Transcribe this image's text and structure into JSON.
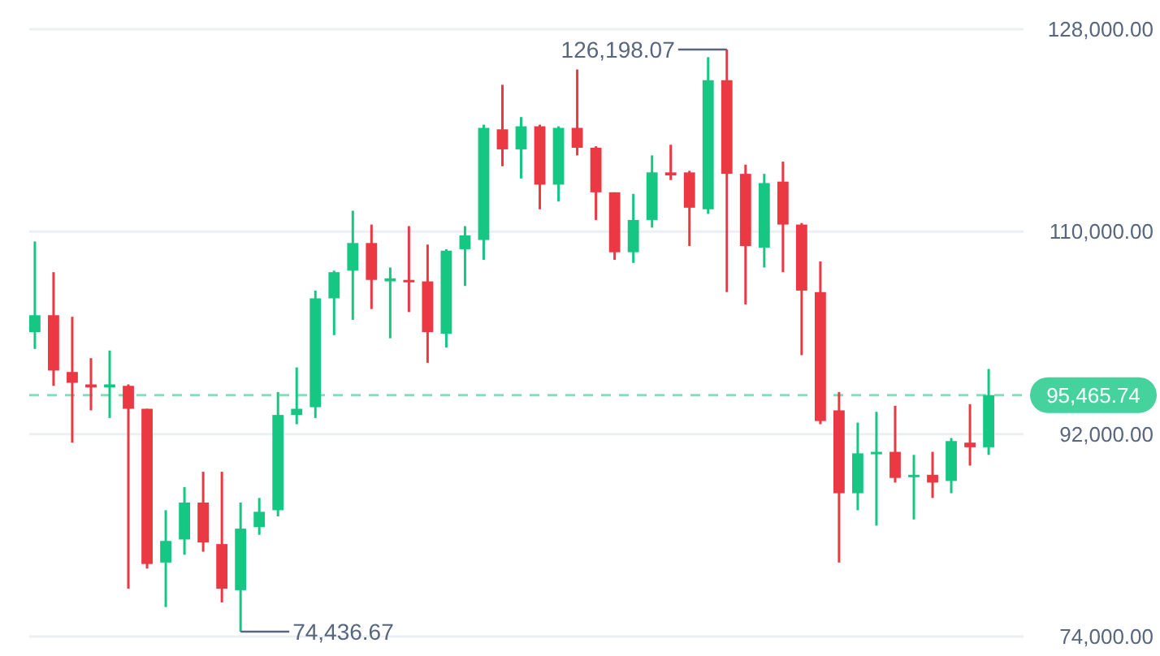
{
  "chart_data": {
    "type": "candlestick",
    "categories": [
      null,
      null,
      null,
      null,
      null,
      null,
      null,
      null,
      null,
      null,
      null,
      null,
      null,
      null,
      null,
      null,
      null,
      null,
      null,
      null,
      null,
      null,
      null,
      null,
      null,
      null,
      null,
      null,
      null,
      null,
      null,
      null,
      null,
      null,
      null,
      null,
      null,
      null,
      null,
      null,
      null,
      null,
      null,
      null,
      null,
      null,
      null,
      null,
      null,
      null,
      null,
      null
    ],
    "ohlc": [
      [
        101070,
        109130,
        99570,
        102570
      ],
      [
        102570,
        106400,
        96290,
        97650
      ],
      [
        97520,
        102430,
        91240,
        96560
      ],
      [
        96420,
        98750,
        94110,
        96150
      ],
      [
        96150,
        99430,
        93430,
        96420
      ],
      [
        96290,
        96420,
        78260,
        94250
      ],
      [
        94250,
        94250,
        80040,
        80450
      ],
      [
        80580,
        85230,
        76620,
        82500
      ],
      [
        82630,
        87280,
        81270,
        85910
      ],
      [
        85910,
        88650,
        81540,
        82360
      ],
      [
        82220,
        88650,
        77030,
        78260
      ],
      [
        78120,
        85910,
        74436.67,
        83590
      ],
      [
        83730,
        86320,
        83040,
        85090
      ],
      [
        85230,
        95740,
        84680,
        93700
      ],
      [
        93700,
        97930,
        92880,
        94250
      ],
      [
        94390,
        104760,
        93430,
        104070
      ],
      [
        104070,
        106530,
        100800,
        106400
      ],
      [
        106530,
        111860,
        102160,
        108990
      ],
      [
        108990,
        110630,
        103120,
        105710
      ],
      [
        105580,
        106810,
        100520,
        105850
      ],
      [
        105710,
        110490,
        102850,
        105580
      ],
      [
        105580,
        108850,
        98340,
        101070
      ],
      [
        100930,
        108440,
        99700,
        108310
      ],
      [
        108440,
        110490,
        105170,
        109670
      ],
      [
        109260,
        119510,
        107490,
        119230
      ],
      [
        119100,
        123060,
        115820,
        117320
      ],
      [
        117320,
        120190,
        114730,
        119370
      ],
      [
        119370,
        119510,
        111990,
        114180
      ],
      [
        114180,
        119370,
        112680,
        119230
      ],
      [
        119230,
        124420,
        116780,
        117460
      ],
      [
        117460,
        117590,
        111040,
        113500
      ],
      [
        113500,
        113500,
        107490,
        108170
      ],
      [
        108170,
        113360,
        107220,
        111040
      ],
      [
        111040,
        116780,
        110360,
        115270
      ],
      [
        115270,
        117730,
        114590,
        115000
      ],
      [
        115270,
        115410,
        108720,
        112130
      ],
      [
        111990,
        125520,
        111580,
        123470
      ],
      [
        123470,
        126198.07,
        104620,
        115140
      ],
      [
        115140,
        115960,
        103530,
        108720
      ],
      [
        108580,
        115140,
        106810,
        114320
      ],
      [
        114450,
        116230,
        106400,
        110630
      ],
      [
        110630,
        110770,
        99020,
        104760
      ],
      [
        104620,
        107350,
        92880,
        93160
      ],
      [
        94110,
        95740,
        80580,
        86740
      ],
      [
        86740,
        93020,
        85230,
        90290
      ],
      [
        90290,
        93980,
        83860,
        90420
      ],
      [
        90420,
        94520,
        87690,
        88100
      ],
      [
        88240,
        90150,
        84410,
        88380
      ],
      [
        88380,
        90420,
        86320,
        87690
      ],
      [
        87830,
        91650,
        86740,
        91380
      ],
      [
        91240,
        94660,
        89200,
        90830
      ],
      [
        90830,
        97790,
        90150,
        95465.74
      ]
    ],
    "ylim": [
      74000,
      128000
    ],
    "yticks": [
      {
        "value": 74000,
        "label": "74,000.00"
      },
      {
        "value": 92000,
        "label": "92,000.00"
      },
      {
        "value": 110000,
        "label": "110,000.00"
      },
      {
        "value": 128000,
        "label": "128,000.00"
      }
    ],
    "grid": "y",
    "tick_labels": "y",
    "ref_lines": [
      {
        "axis": "y",
        "value": 95465.74,
        "label": "95,465.74",
        "color": "#16c784",
        "line_style": "dashed"
      }
    ],
    "annotations": [
      "126,198.07",
      "74,436.67"
    ]
  }
}
